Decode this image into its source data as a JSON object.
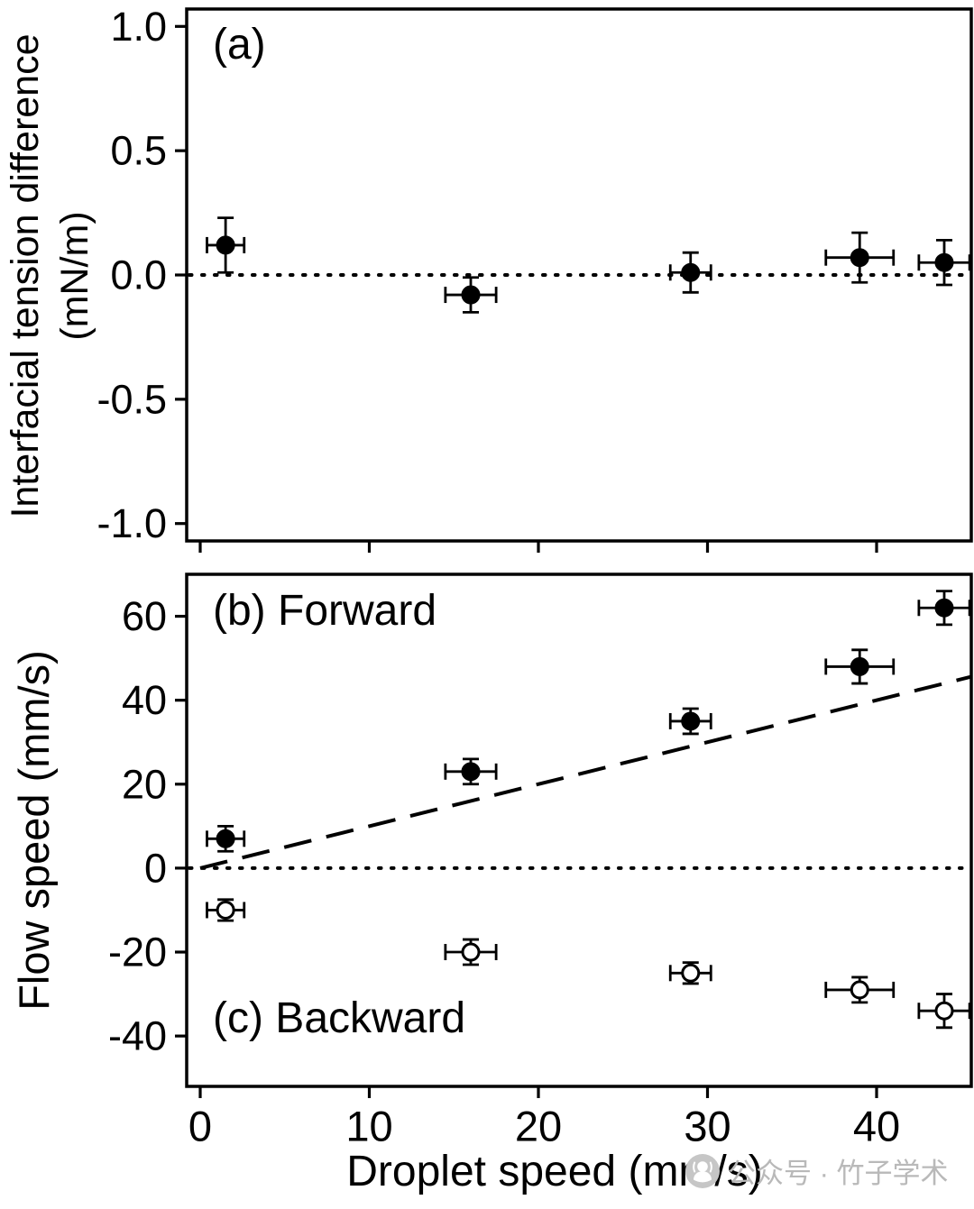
{
  "chart_data": [
    {
      "id": "panel-a",
      "type": "scatter",
      "annotation": "(a)",
      "ylabel_line1": "Interfacial tension difference",
      "ylabel_line2": "(mN/m)",
      "xlim": [
        -0.8,
        45.6
      ],
      "ylim": [
        -1.07,
        1.07
      ],
      "xticks": [
        0,
        10,
        20,
        30,
        40
      ],
      "xtick_labels": [
        "0",
        "10",
        "20",
        "30",
        "40"
      ],
      "show_xtick_labels": false,
      "yticks": [
        1.0,
        0.5,
        0.0,
        -0.5,
        -1.0
      ],
      "ytick_labels": [
        "1.0",
        "0.5",
        "0.0",
        "-0.5",
        "-1.0"
      ],
      "zero_line": true,
      "color": "#000000",
      "grid": false,
      "series": [
        {
          "name": "interfacial-tension-difference",
          "marker": "filled-circle",
          "points": [
            {
              "x": 1.5,
              "y": 0.12,
              "xerr": 1.1,
              "yerr": 0.11
            },
            {
              "x": 16,
              "y": -0.08,
              "xerr": 1.5,
              "yerr": 0.07
            },
            {
              "x": 29,
              "y": 0.01,
              "xerr": 1.2,
              "yerr": 0.08
            },
            {
              "x": 39,
              "y": 0.07,
              "xerr": 2.0,
              "yerr": 0.1
            },
            {
              "x": 44,
              "y": 0.05,
              "xerr": 1.5,
              "yerr": 0.09
            }
          ]
        }
      ]
    },
    {
      "id": "panel-bc",
      "type": "scatter",
      "annotation_top": "(b) Forward",
      "annotation_bottom": "(c) Backward",
      "ylabel": "Flow speed (mm/s)",
      "xlabel": "Droplet speed (mm/s)",
      "xlim": [
        -0.8,
        45.6
      ],
      "ylim": [
        -52,
        70
      ],
      "xticks": [
        0,
        10,
        20,
        30,
        40
      ],
      "xtick_labels": [
        "0",
        "10",
        "20",
        "30",
        "40"
      ],
      "show_xtick_labels": true,
      "yticks": [
        60,
        40,
        20,
        0,
        -20,
        -40
      ],
      "ytick_labels": [
        "60",
        "40",
        "20",
        "0",
        "-20",
        "-40"
      ],
      "zero_line": true,
      "guide_line": {
        "style": "dashed",
        "slope": 1,
        "intercept": 0,
        "x_start": 0,
        "x_end": 45.6
      },
      "color": "#000000",
      "grid": false,
      "series": [
        {
          "name": "forward-flow",
          "marker": "filled-circle",
          "points": [
            {
              "x": 1.5,
              "y": 7,
              "xerr": 1.1,
              "yerr": 3
            },
            {
              "x": 16,
              "y": 23,
              "xerr": 1.5,
              "yerr": 3
            },
            {
              "x": 29,
              "y": 35,
              "xerr": 1.2,
              "yerr": 3
            },
            {
              "x": 39,
              "y": 48,
              "xerr": 2.0,
              "yerr": 4
            },
            {
              "x": 44,
              "y": 62,
              "xerr": 1.5,
              "yerr": 4
            }
          ]
        },
        {
          "name": "backward-flow",
          "marker": "open-circle",
          "points": [
            {
              "x": 1.5,
              "y": -10,
              "xerr": 1.1,
              "yerr": 2.5
            },
            {
              "x": 16,
              "y": -20,
              "xerr": 1.5,
              "yerr": 3
            },
            {
              "x": 29,
              "y": -25,
              "xerr": 1.2,
              "yerr": 2.5
            },
            {
              "x": 39,
              "y": -29,
              "xerr": 2.0,
              "yerr": 3
            },
            {
              "x": 44,
              "y": -34,
              "xerr": 1.5,
              "yerr": 4
            }
          ]
        }
      ]
    }
  ],
  "watermark": {
    "text": "公众号 · 竹子学术",
    "icon": "wechat-official-account-icon",
    "color": "#b9b9b9"
  }
}
